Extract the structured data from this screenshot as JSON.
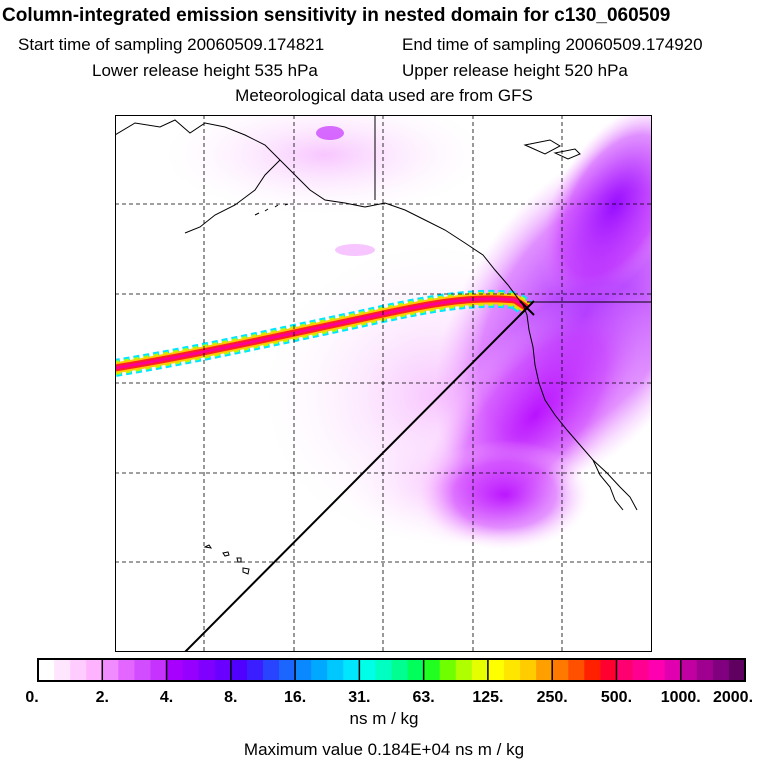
{
  "header": {
    "title": "Column-integrated emission sensitivity in nested domain for c130_060509",
    "start_time": "Start time of sampling 20060509.174821",
    "end_time": "End time of sampling 20060509.174920",
    "lower_height": "Lower release height  535 hPa",
    "upper_height": "Upper release height  520 hPa",
    "met_data": "Meteorological data used are from GFS"
  },
  "colorbar": {
    "tick_labels": [
      "0.",
      "2.",
      "4.",
      "8.",
      "16.",
      "31.",
      "63.",
      "125.",
      "250.",
      "500.",
      "1000.",
      "2000."
    ],
    "colors": [
      "#ffffff",
      "#ffe6ff",
      "#ffccff",
      "#ffb3ff",
      "#f08cff",
      "#e266ff",
      "#d24dff",
      "#c633ff",
      "#a800ff",
      "#9600ff",
      "#8000ff",
      "#6a00ff",
      "#5000ff",
      "#3a1eff",
      "#2844ff",
      "#1a66ff",
      "#0a88ff",
      "#00a8ff",
      "#00c8ff",
      "#00e6ff",
      "#00ffe6",
      "#00ffc0",
      "#00ff90",
      "#00ff5a",
      "#20ff20",
      "#70ff00",
      "#b0ff00",
      "#e6ff00",
      "#ffff00",
      "#ffe600",
      "#ffcc00",
      "#ffa000",
      "#ff7800",
      "#ff5000",
      "#ff2000",
      "#ff0030",
      "#ff0070",
      "#ff0090",
      "#ff00b0",
      "#e000b0",
      "#c000a0",
      "#a00090",
      "#800080",
      "#600060"
    ],
    "unit": "ns m / kg",
    "max_value": "Maximum value  0.184E+04 ns m / kg"
  }
}
